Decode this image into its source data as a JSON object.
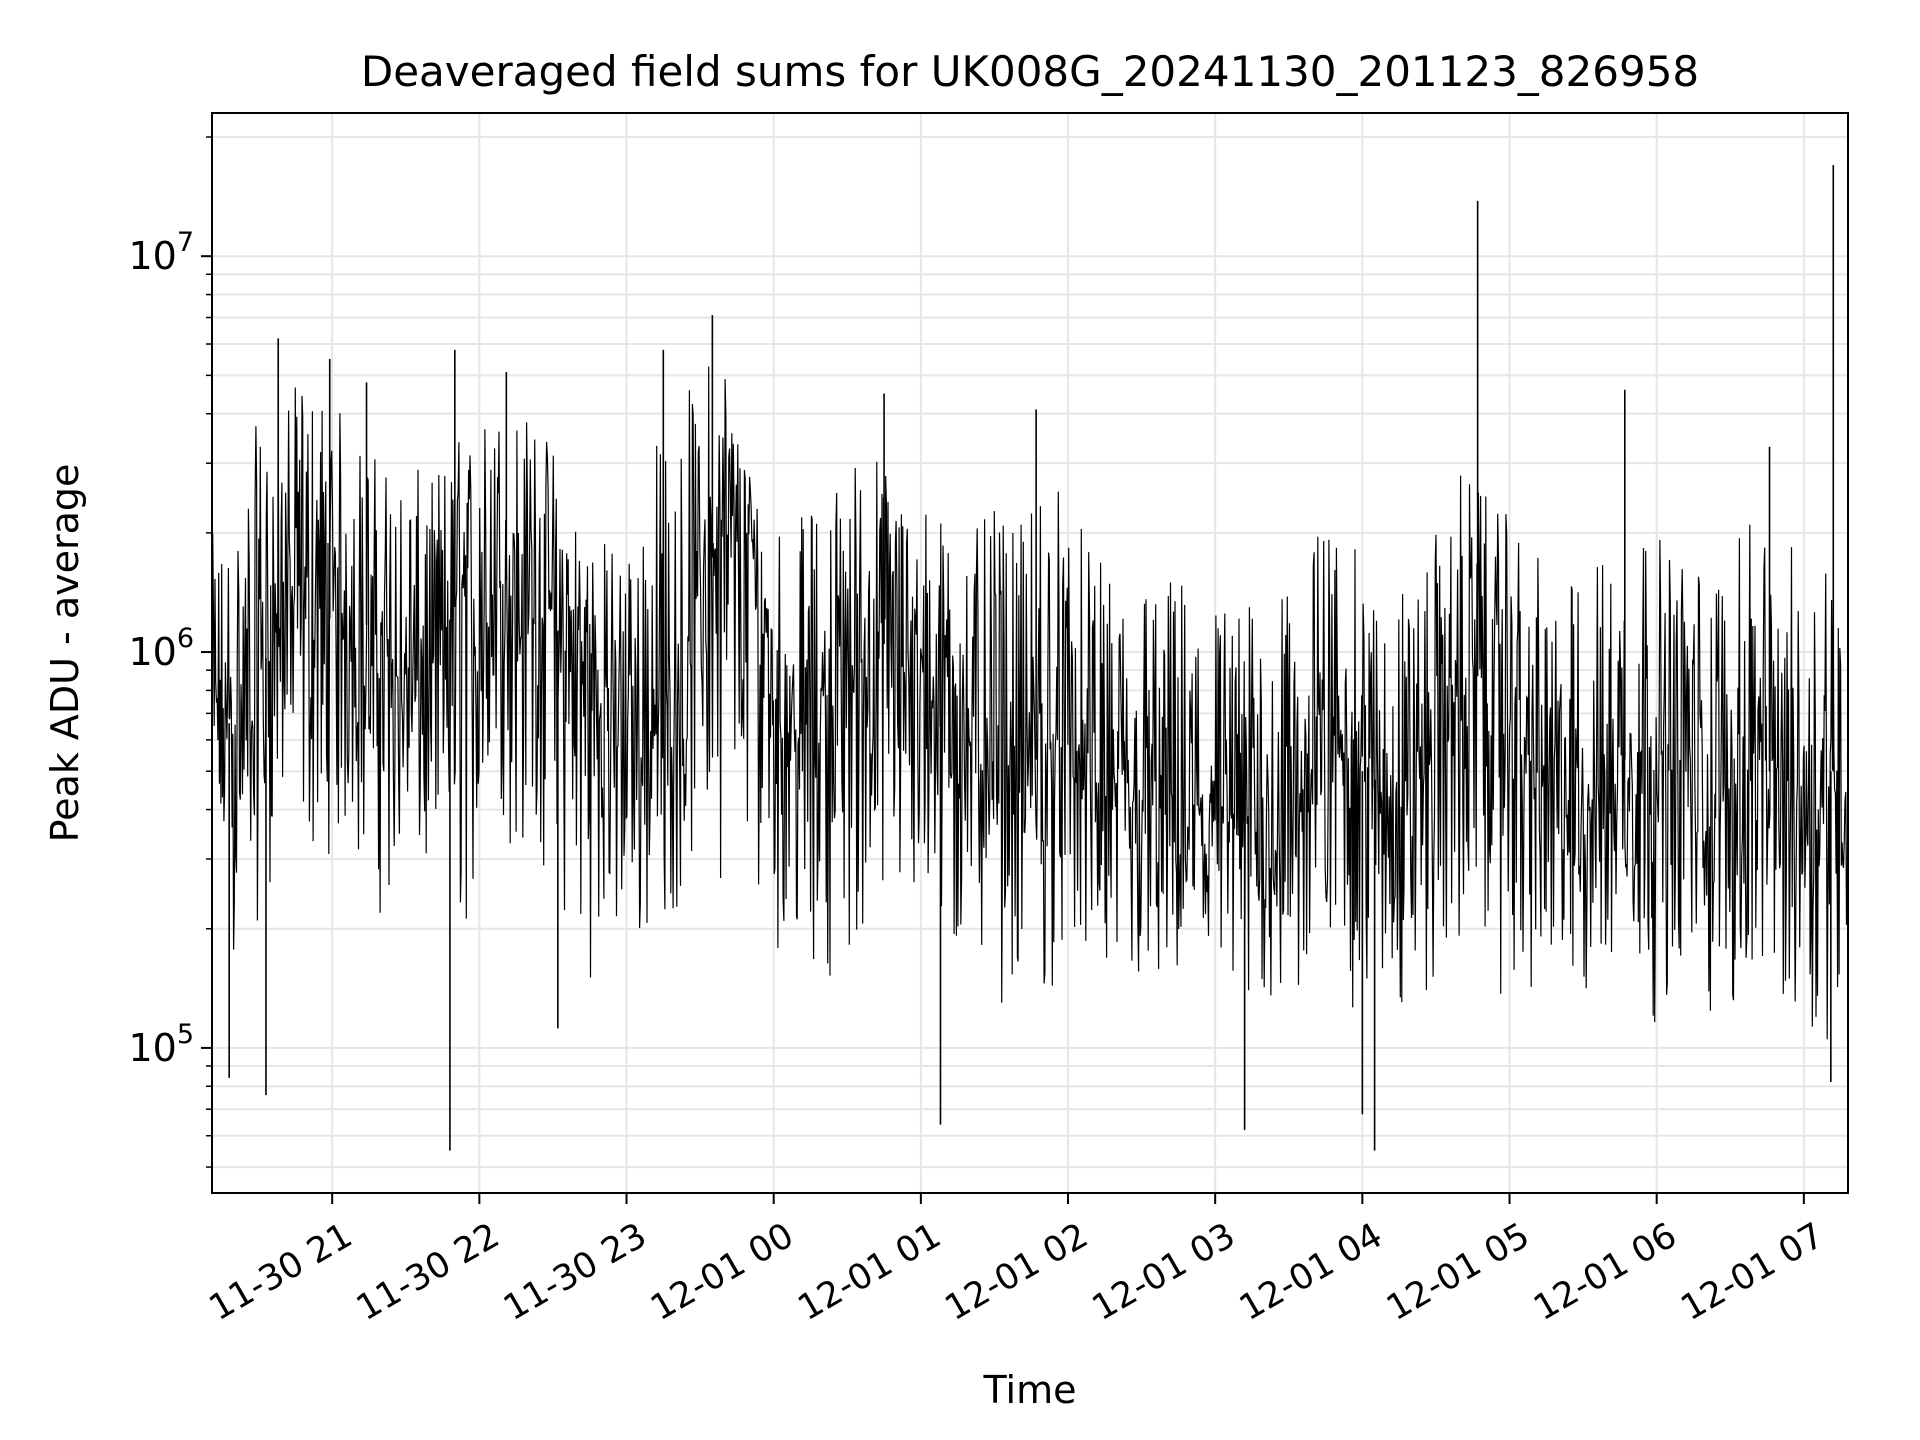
{
  "chart_data": {
    "type": "line",
    "title": "Deaveraged field sums for UK008G_20241130_201123_826958",
    "xlabel": "Time",
    "ylabel": "Peak ADU - average",
    "yscale": "log",
    "ylim": [
      43000,
      23000000
    ],
    "xlim": [
      "2024-11-30 20:11",
      "2024-12-01 07:18"
    ],
    "grid": true,
    "line_color": "#000000",
    "grid_color": "#e6e6e6",
    "x_ticks": [
      {
        "label": "11-30 21",
        "time": "2024-11-30 21:00"
      },
      {
        "label": "11-30 22",
        "time": "2024-11-30 22:00"
      },
      {
        "label": "11-30 23",
        "time": "2024-11-30 23:00"
      },
      {
        "label": "12-01 00",
        "time": "2024-12-01 00:00"
      },
      {
        "label": "12-01 01",
        "time": "2024-12-01 01:00"
      },
      {
        "label": "12-01 02",
        "time": "2024-12-01 02:00"
      },
      {
        "label": "12-01 03",
        "time": "2024-12-01 03:00"
      },
      {
        "label": "12-01 04",
        "time": "2024-12-01 04:00"
      },
      {
        "label": "12-01 05",
        "time": "2024-12-01 05:00"
      },
      {
        "label": "12-01 06",
        "time": "2024-12-01 06:00"
      },
      {
        "label": "12-01 07",
        "time": "2024-12-01 07:00"
      }
    ],
    "y_ticks": [
      {
        "base": "10",
        "exp": "5",
        "value": 100000
      },
      {
        "base": "10",
        "exp": "6",
        "value": 1000000
      },
      {
        "base": "10",
        "exp": "7",
        "value": 10000000
      }
    ],
    "series": [
      {
        "x": [
          "2024-11-30 20:11",
          "2024-11-30 20:20",
          "2024-11-30 20:30",
          "2024-11-30 20:40",
          "2024-11-30 20:50",
          "2024-11-30 21:00",
          "2024-11-30 21:10",
          "2024-11-30 21:20",
          "2024-11-30 21:30",
          "2024-11-30 21:40",
          "2024-11-30 21:50",
          "2024-11-30 22:00",
          "2024-11-30 22:10",
          "2024-11-30 22:20",
          "2024-11-30 22:30",
          "2024-11-30 22:40",
          "2024-11-30 22:50",
          "2024-11-30 23:00",
          "2024-11-30 23:10",
          "2024-11-30 23:20",
          "2024-11-30 23:30",
          "2024-11-30 23:40",
          "2024-11-30 23:50",
          "2024-12-01 00:00",
          "2024-12-01 00:10",
          "2024-12-01 00:20",
          "2024-12-01 00:30",
          "2024-12-01 00:40",
          "2024-12-01 00:50",
          "2024-12-01 01:00",
          "2024-12-01 01:10",
          "2024-12-01 01:20",
          "2024-12-01 01:30",
          "2024-12-01 01:40",
          "2024-12-01 01:50",
          "2024-12-01 02:00",
          "2024-12-01 02:10",
          "2024-12-01 02:20",
          "2024-12-01 02:30",
          "2024-12-01 02:40",
          "2024-12-01 02:50",
          "2024-12-01 03:00",
          "2024-12-01 03:10",
          "2024-12-01 03:20",
          "2024-12-01 03:30",
          "2024-12-01 03:40",
          "2024-12-01 03:50",
          "2024-12-01 04:00",
          "2024-12-01 04:10",
          "2024-12-01 04:20",
          "2024-12-01 04:30",
          "2024-12-01 04:40",
          "2024-12-01 04:50",
          "2024-12-01 05:00",
          "2024-12-01 05:10",
          "2024-12-01 05:20",
          "2024-12-01 05:30",
          "2024-12-01 05:40",
          "2024-12-01 05:50",
          "2024-12-01 06:00",
          "2024-12-01 06:10",
          "2024-12-01 06:20",
          "2024-12-01 06:30",
          "2024-12-01 06:40",
          "2024-12-01 06:50",
          "2024-12-01 07:00",
          "2024-12-01 07:10",
          "2024-12-01 07:18"
        ],
        "y": [
          700000,
          650000,
          800000,
          1500000,
          1400000,
          1200000,
          1300000,
          1000000,
          800000,
          900000,
          1300000,
          1200000,
          1500000,
          1700000,
          1200000,
          900000,
          800000,
          800000,
          600000,
          700000,
          1500000,
          2000000,
          1800000,
          900000,
          600000,
          800000,
          900000,
          1000000,
          1100000,
          900000,
          800000,
          700000,
          600000,
          500000,
          550000,
          600000,
          500000,
          400000,
          380000,
          420000,
          400000,
          400000,
          350000,
          400000,
          380000,
          500000,
          700000,
          500000,
          450000,
          500000,
          600000,
          800000,
          900000,
          700000,
          500000,
          450000,
          400000,
          500000,
          550000,
          500000,
          500000,
          450000,
          450000,
          500000,
          500000,
          450000,
          500000,
          500000
        ],
        "ylow": [
          300000,
          150000,
          200000,
          300000,
          250000,
          300000,
          250000,
          200000,
          250000,
          200000,
          120000,
          250000,
          280000,
          250000,
          200000,
          150000,
          140000,
          120000,
          180000,
          200000,
          300000,
          250000,
          250000,
          180000,
          130000,
          150000,
          140000,
          170000,
          180000,
          150000,
          130000,
          120000,
          130000,
          110000,
          120000,
          150000,
          120000,
          110000,
          120000,
          110000,
          110000,
          100000,
          90000,
          110000,
          100000,
          120000,
          150000,
          90000,
          100000,
          110000,
          120000,
          150000,
          140000,
          120000,
          110000,
          100000,
          110000,
          110000,
          120000,
          110000,
          110000,
          100000,
          110000,
          110000,
          110000,
          100000,
          100000,
          110000
        ],
        "yhigh": [
          2000000,
          2200000,
          4000000,
          4500000,
          5000000,
          4500000,
          3500000,
          3200000,
          3000000,
          2800000,
          3500000,
          4000000,
          4500000,
          4000000,
          3500000,
          2500000,
          2000000,
          1800000,
          3500000,
          4000000,
          5500000,
          6000000,
          3000000,
          2500000,
          2200000,
          2500000,
          3200000,
          3500000,
          2800000,
          2500000,
          2200000,
          2000000,
          2300000,
          2000000,
          3500000,
          2500000,
          1800000,
          1500000,
          1700000,
          1600000,
          1600000,
          1500000,
          1300000,
          1500000,
          1400000,
          2000000,
          2500000,
          1600000,
          1500000,
          1500000,
          2000000,
          3000000,
          2500000,
          2200000,
          1800000,
          1500000,
          1600000,
          2000000,
          2500000,
          2000000,
          1800000,
          1700000,
          1800000,
          2200000,
          2000000,
          1800000,
          2200000,
          2500000
        ]
      }
    ],
    "spikes": [
      {
        "time": "2024-11-30 20:18",
        "value": 84000,
        "dir": "down"
      },
      {
        "time": "2024-11-30 20:33",
        "value": 76000,
        "dir": "down"
      },
      {
        "time": "2024-11-30 20:38",
        "value": 6200000,
        "dir": "up"
      },
      {
        "time": "2024-11-30 20:59",
        "value": 5500000,
        "dir": "up"
      },
      {
        "time": "2024-11-30 21:14",
        "value": 4800000,
        "dir": "up"
      },
      {
        "time": "2024-11-30 21:48",
        "value": 55000,
        "dir": "down"
      },
      {
        "time": "2024-11-30 21:50",
        "value": 5800000,
        "dir": "up"
      },
      {
        "time": "2024-11-30 22:11",
        "value": 5100000,
        "dir": "up"
      },
      {
        "time": "2024-11-30 22:32",
        "value": 112000,
        "dir": "down"
      },
      {
        "time": "2024-11-30 23:15",
        "value": 5800000,
        "dir": "up"
      },
      {
        "time": "2024-11-30 23:35",
        "value": 7100000,
        "dir": "up"
      },
      {
        "time": "2024-12-01 00:45",
        "value": 4500000,
        "dir": "up"
      },
      {
        "time": "2024-12-01 01:08",
        "value": 64000,
        "dir": "down"
      },
      {
        "time": "2024-12-01 01:47",
        "value": 4100000,
        "dir": "up"
      },
      {
        "time": "2024-12-01 03:12",
        "value": 62000,
        "dir": "down"
      },
      {
        "time": "2024-12-01 04:00",
        "value": 68000,
        "dir": "down"
      },
      {
        "time": "2024-12-01 04:05",
        "value": 55000,
        "dir": "down"
      },
      {
        "time": "2024-12-01 04:47",
        "value": 13800000,
        "dir": "up"
      },
      {
        "time": "2024-12-01 05:47",
        "value": 4600000,
        "dir": "up"
      },
      {
        "time": "2024-12-01 06:46",
        "value": 3300000,
        "dir": "up"
      },
      {
        "time": "2024-12-01 07:12",
        "value": 17000000,
        "dir": "up"
      },
      {
        "time": "2024-12-01 07:11",
        "value": 82000,
        "dir": "down"
      }
    ]
  }
}
